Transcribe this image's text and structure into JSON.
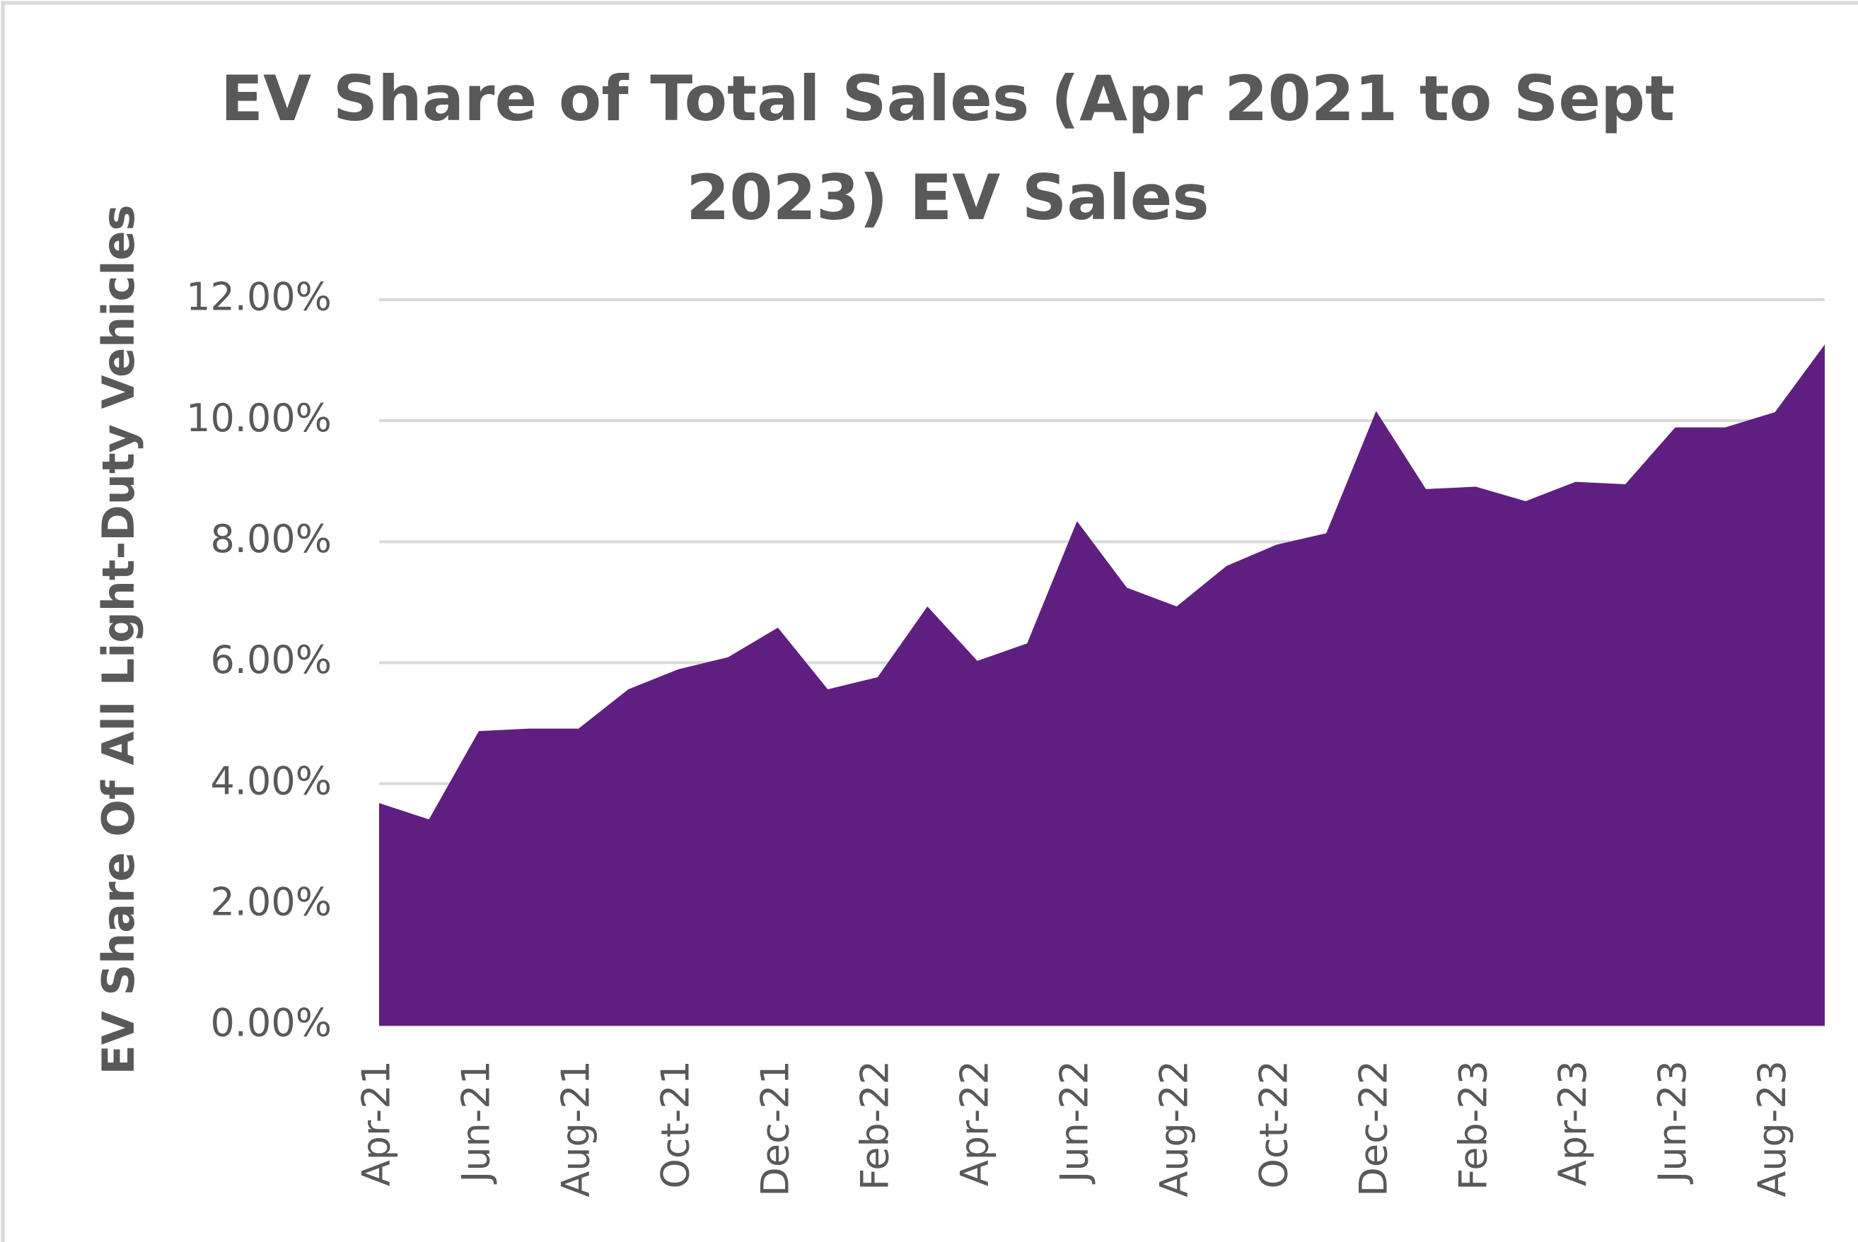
{
  "chart_data": {
    "type": "area",
    "title": "EV Share of Total Sales (Apr 2021 to Sept 2023) EV Sales",
    "y_label": "EV Share Of All Light-Duty Vehicles",
    "categories": [
      "Apr-21",
      null,
      "Jun-21",
      null,
      "Aug-21",
      null,
      "Oct-21",
      null,
      "Dec-21",
      null,
      "Feb-22",
      null,
      "Apr-22",
      null,
      "Jun-22",
      null,
      "Aug-22",
      null,
      "Oct-22",
      null,
      "Dec-22",
      null,
      "Feb-23",
      null,
      "Apr-23",
      null,
      "Jun-23",
      null,
      "Aug-23",
      null
    ],
    "values": [
      3.68,
      3.41,
      4.87,
      4.91,
      4.91,
      5.56,
      5.89,
      6.09,
      6.58,
      5.56,
      5.76,
      6.93,
      6.03,
      6.32,
      8.34,
      7.24,
      6.93,
      7.6,
      7.95,
      8.14,
      10.16,
      8.87,
      8.91,
      8.67,
      8.99,
      8.95,
      9.89,
      9.89,
      10.14,
      11.26
    ],
    "color": "#5e1f80",
    "ylim": [
      0,
      12
    ],
    "yticks": [
      {
        "value": 0,
        "label": "0.00%"
      },
      {
        "value": 2,
        "label": "2.00%"
      },
      {
        "value": 4,
        "label": "4.00%"
      },
      {
        "value": 6,
        "label": "6.00%"
      },
      {
        "value": 8,
        "label": "8.00%"
      },
      {
        "value": 10,
        "label": "10.00%"
      },
      {
        "value": 12,
        "label": "12.00%"
      }
    ],
    "grid": true
  }
}
